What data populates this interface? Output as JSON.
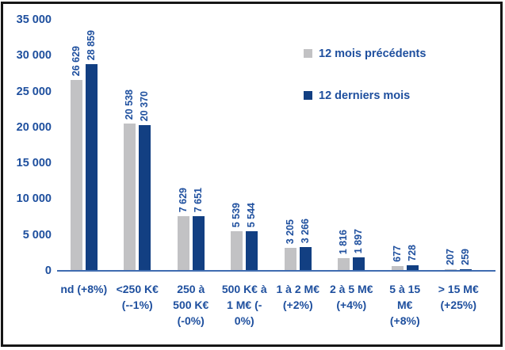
{
  "colors": {
    "background": "#ffffff",
    "frame_border": "#161616",
    "bar_previous_gray": "#c2c2c4",
    "bar_last_navy": "#123f82",
    "text_blue": "#1e4f9e",
    "axis_line_blue": "#3f6cb0"
  },
  "legend": {
    "items": [
      {
        "label": "12 mois précédents",
        "color": "#c2c2c4"
      },
      {
        "label": "12 derniers mois",
        "color": "#123f82"
      }
    ]
  },
  "chart_data": {
    "type": "bar",
    "title": "",
    "xlabel": "",
    "ylabel": "",
    "categories": [
      "nd (+8%)",
      "<250 K€ (--1%)",
      "250 à 500 K€ (-0%)",
      "500 K€ à 1 M€ (-0%)",
      "1 à 2 M€ (+2%)",
      "2 à 5 M€ (+4%)",
      "5 à 15 M€ (+8%)",
      "> 15 M€ (+25%)"
    ],
    "category_label_lines": [
      [
        "nd (+8%)"
      ],
      [
        "<250 K€",
        "(--1%)"
      ],
      [
        "250 à",
        "500 K€",
        "(-0%)"
      ],
      [
        "500 K€ à",
        "1 M€ (-",
        "0%)"
      ],
      [
        "1 à 2 M€",
        "(+2%)"
      ],
      [
        "2 à 5 M€",
        "(+4%)"
      ],
      [
        "5 à 15",
        "M€",
        "(+8%)"
      ],
      [
        "> 15 M€",
        "(+25%)"
      ]
    ],
    "series": [
      {
        "name": "12 mois précédents",
        "color": "#c2c2c4",
        "values": [
          26629,
          20538,
          7629,
          5539,
          3205,
          1816,
          677,
          207
        ]
      },
      {
        "name": "12 derniers mois",
        "color": "#123f82",
        "values": [
          28859,
          20370,
          7651,
          5544,
          3266,
          1897,
          728,
          259
        ]
      }
    ],
    "ylim": [
      0,
      35000
    ],
    "ytick_step": 5000,
    "ytick_labels": [
      "0",
      "5 000",
      "10 000",
      "15 000",
      "20 000",
      "25 000",
      "30 000",
      "35 000"
    ],
    "grid": false,
    "legend_position": "upper-right",
    "value_labels": "rotated-90-above-bars",
    "number_format": "space-thousands"
  }
}
